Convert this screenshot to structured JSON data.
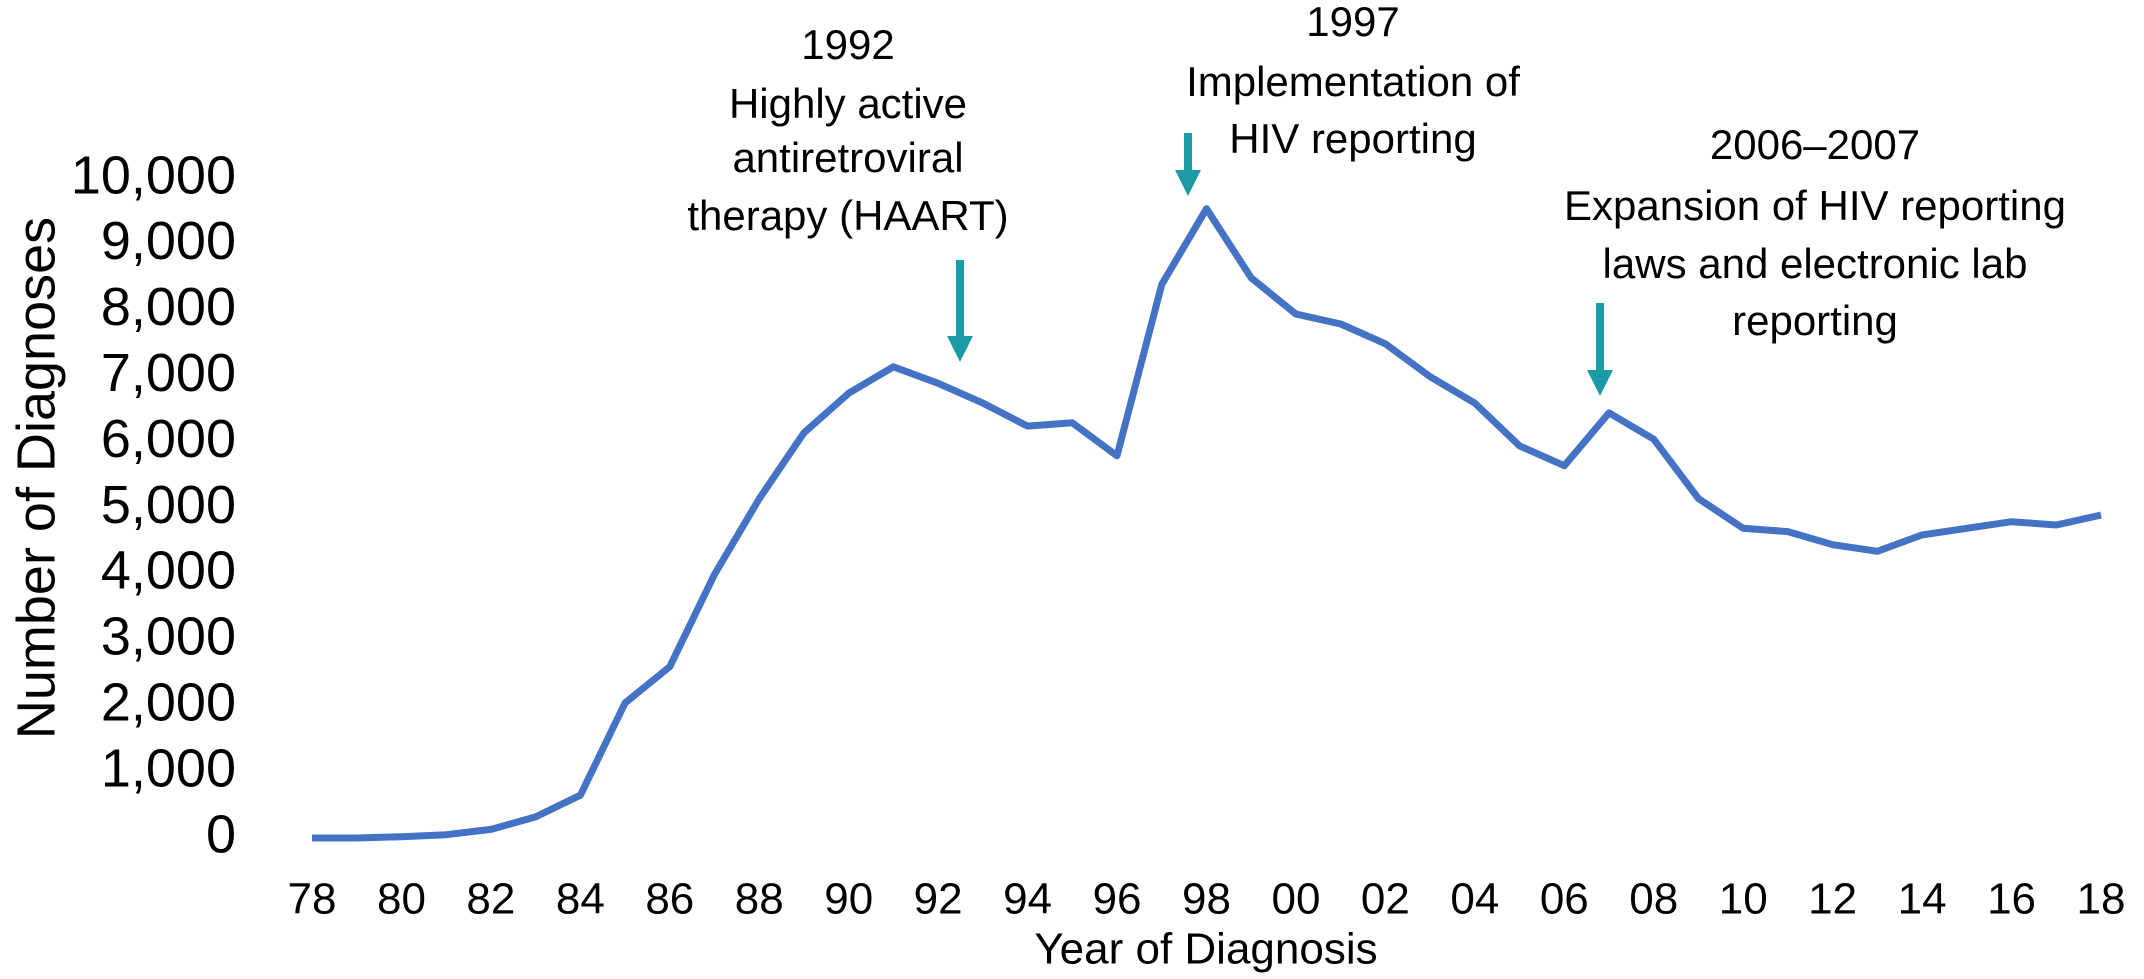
{
  "chart_data": {
    "type": "line",
    "x_label": "Year of Diagnosis",
    "y_label": "Number of Diagnoses",
    "categories": [
      "78",
      null,
      "80",
      null,
      "82",
      null,
      "84",
      null,
      "86",
      null,
      "88",
      null,
      "90",
      null,
      "92",
      null,
      "94",
      null,
      "96",
      null,
      "98",
      null,
      "00",
      null,
      "02",
      null,
      "04",
      null,
      "06",
      null,
      "08",
      null,
      "10",
      null,
      "12",
      null,
      "14",
      null,
      "16",
      null,
      "18"
    ],
    "values": [
      0,
      0,
      20,
      50,
      130,
      320,
      650,
      2050,
      2600,
      4000,
      5150,
      6150,
      6750,
      7150,
      6900,
      6600,
      6250,
      6300,
      5800,
      8400,
      9550,
      8500,
      7950,
      7800,
      7500,
      7000,
      6600,
      5950,
      5650,
      6450,
      6050,
      5150,
      4700,
      4650,
      4450,
      4350,
      4600,
      4700,
      4800,
      4750,
      4900
    ],
    "color": "#4472c4",
    "ylim": [
      0,
      10000
    ],
    "yticks": [
      0,
      {
        "value": 1000,
        "label": "1,000"
      },
      {
        "value": 2000,
        "label": "2,000"
      },
      {
        "value": 3000,
        "label": "3,000"
      },
      {
        "value": 4000,
        "label": "4,000"
      },
      {
        "value": 5000,
        "label": "5,000"
      },
      {
        "value": 6000,
        "label": "6,000"
      },
      {
        "value": 7000,
        "label": "7,000"
      },
      {
        "value": 8000,
        "label": "8,000"
      },
      {
        "value": 9000,
        "label": "9,000"
      },
      {
        "value": 10000,
        "label": "10,000"
      }
    ],
    "grid": false,
    "annotations": [
      {
        "lines": [
          "1992",
          "Highly active",
          "antiretroviral",
          "therapy (HAART)"
        ],
        "color": "#1b9ba6"
      },
      {
        "lines": [
          "1997",
          "Implementation of",
          "HIV reporting"
        ],
        "color": "#1b9ba6"
      },
      {
        "lines": [
          "2006–2007",
          "Expansion of HIV reporting",
          "laws and electronic lab",
          "reporting"
        ],
        "color": "#1b9ba6"
      }
    ]
  }
}
